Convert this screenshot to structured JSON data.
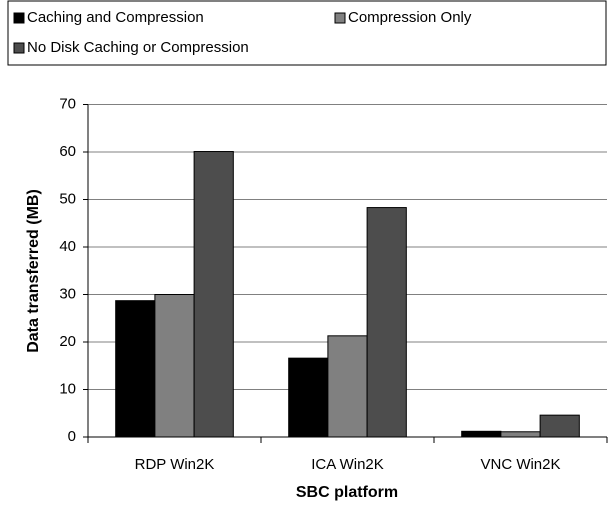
{
  "chart_data": {
    "type": "bar",
    "categories": [
      "RDP Win2K",
      "ICA Win2K",
      "VNC Win2K"
    ],
    "series": [
      {
        "name": "Caching and Compression",
        "color": "#000000",
        "values": [
          28.7,
          16.6,
          1.2
        ]
      },
      {
        "name": "Compression Only",
        "color": "#808080",
        "values": [
          30.0,
          21.3,
          1.1
        ]
      },
      {
        "name": "No Disk Caching or Compression",
        "color": "#4d4d4d",
        "values": [
          60.1,
          48.3,
          4.6
        ]
      }
    ],
    "x_label": "SBC platform",
    "y_label": "Data transferred (MB)",
    "ylim": [
      0,
      70
    ],
    "yticks": [
      0,
      10,
      20,
      30,
      40,
      50,
      60,
      70
    ],
    "grid": true
  }
}
